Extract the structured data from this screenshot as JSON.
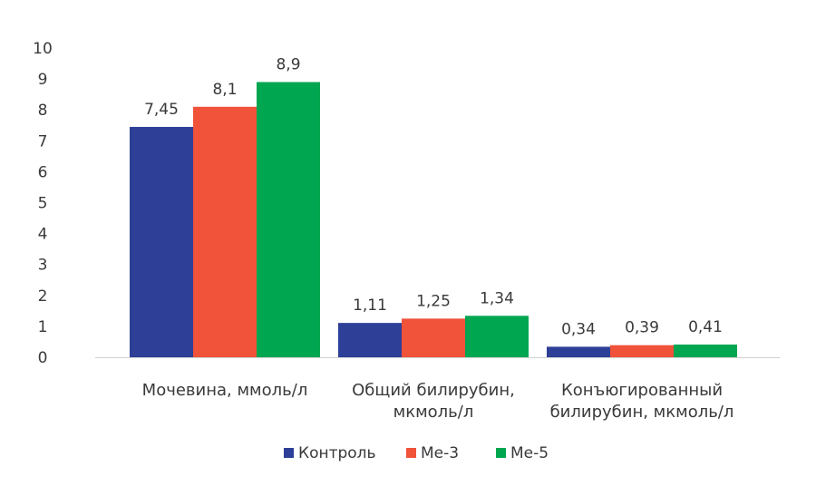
{
  "chart_data": {
    "type": "bar",
    "categories": [
      [
        "Мочевина, ммоль/л"
      ],
      [
        "Общий билирубин,",
        "мкмоль/л"
      ],
      [
        "Конъюгированный",
        "билирубин, мкмоль/л"
      ]
    ],
    "series": [
      {
        "name": "Контроль",
        "color": "#2e3f97",
        "values": [
          7.45,
          1.11,
          0.34
        ],
        "labels": [
          "7,45",
          "1,11",
          "0,34"
        ]
      },
      {
        "name": "Me-3",
        "color": "#f0523a",
        "values": [
          8.1,
          1.25,
          0.39
        ],
        "labels": [
          "8,1",
          "1,25",
          "0,39"
        ]
      },
      {
        "name": "Me-5",
        "color": "#00a650",
        "values": [
          8.9,
          1.34,
          0.41
        ],
        "labels": [
          "8,9",
          "1,34",
          "0,41"
        ]
      }
    ],
    "y_ticks": [
      "0",
      "1",
      "2",
      "3",
      "4",
      "5",
      "6",
      "7",
      "8",
      "9",
      "10"
    ],
    "ylim": [
      0,
      10
    ],
    "grid": false,
    "legend_position": "bottom-center",
    "title": "",
    "xlabel": "",
    "ylabel": ""
  }
}
